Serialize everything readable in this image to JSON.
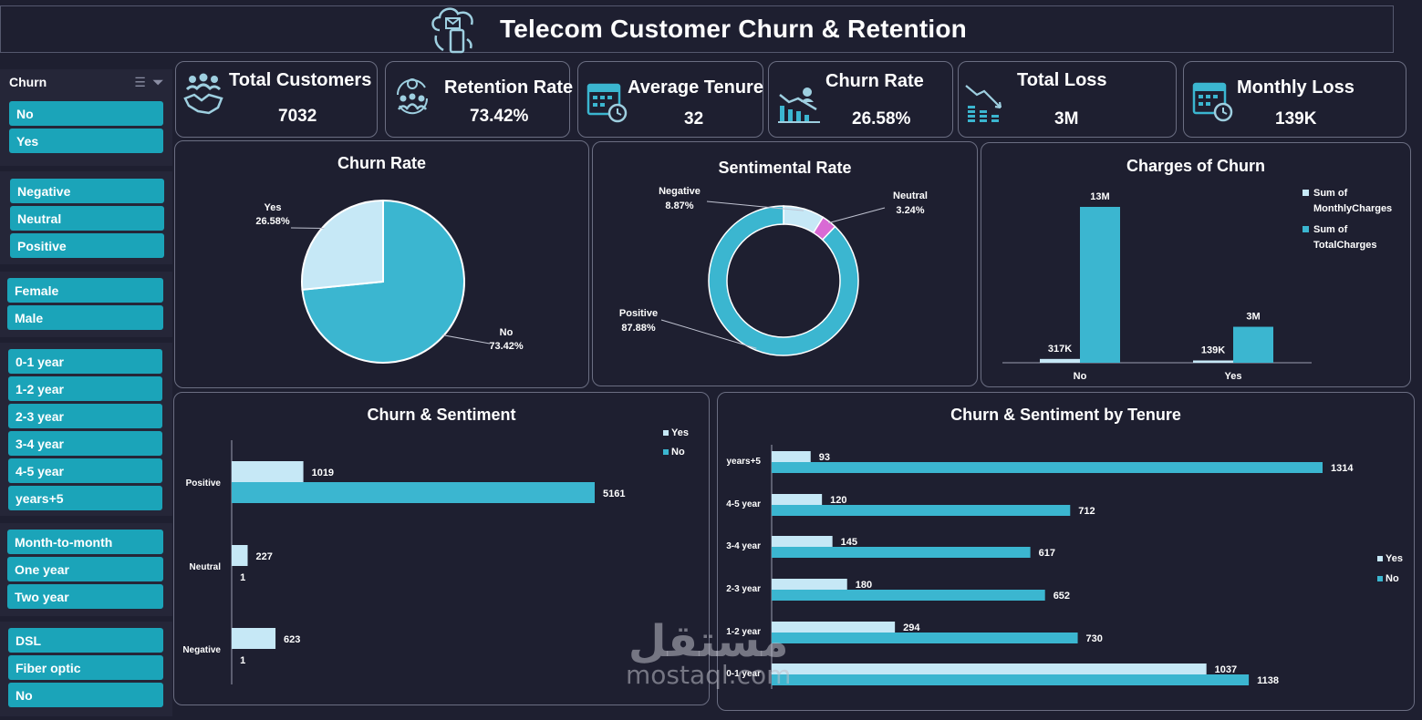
{
  "title": "Telecom Customer Churn & Retention",
  "colors": {
    "background": "#1e1f30",
    "accent": "#3bb6d0",
    "light": "#c6e8f6",
    "pink": "#d96ad4",
    "slicer": "#1ba4b9"
  },
  "slicers": [
    {
      "header": "Churn",
      "items": [
        "No",
        "Yes"
      ]
    },
    {
      "header": "",
      "items": [
        "Negative",
        "Neutral",
        "Positive"
      ]
    },
    {
      "header": "",
      "items": [
        "Female",
        "Male"
      ]
    },
    {
      "header": "",
      "items": [
        "0-1 year",
        "1-2 year",
        "2-3 year",
        "3-4 year",
        "4-5 year",
        "years+5"
      ]
    },
    {
      "header": "",
      "items": [
        "Month-to-month",
        "One year",
        "Two year"
      ]
    },
    {
      "header": "",
      "items": [
        "DSL",
        "Fiber optic",
        "No"
      ]
    }
  ],
  "kpis": [
    {
      "label": "Total Customers",
      "value": "7032",
      "icon": "handshake-icon"
    },
    {
      "label": "Retention Rate",
      "value": "73.42%",
      "icon": "retention-cycle-icon"
    },
    {
      "label": "Average Tenure",
      "value": "32",
      "icon": "calendar-clock-icon"
    },
    {
      "label": "Churn Rate",
      "value": "26.58%",
      "icon": "declining-chart-icon"
    },
    {
      "label": "Total Loss",
      "value": "3M",
      "icon": "falling-bars-icon"
    },
    {
      "label": "Monthly Loss",
      "value": "139K",
      "icon": "calendar-clock-icon"
    }
  ],
  "chart_data": [
    {
      "type": "pie",
      "title": "Churn Rate",
      "slices": [
        {
          "name": "Yes",
          "value": 26.58,
          "label": "26.58%",
          "color": "#c6e8f6"
        },
        {
          "name": "No",
          "value": 73.42,
          "label": "73.42%",
          "color": "#3bb6d0"
        }
      ]
    },
    {
      "type": "pie",
      "subtype": "donut",
      "title": "Sentimental Rate",
      "slices": [
        {
          "name": "Negative",
          "value": 8.87,
          "label": "8.87%",
          "color": "#c6e8f6"
        },
        {
          "name": "Neutral",
          "value": 3.24,
          "label": "3.24%",
          "color": "#d96ad4"
        },
        {
          "name": "Positive",
          "value": 87.88,
          "label": "87.88%",
          "color": "#3bb6d0"
        }
      ]
    },
    {
      "type": "bar",
      "title": "Charges of Churn",
      "categories": [
        "No",
        "Yes"
      ],
      "series": [
        {
          "name": "Sum of MonthlyCharges",
          "legend_lines": [
            "Sum of",
            "MonthlyCharges"
          ],
          "values": [
            317000,
            139000
          ],
          "labels": [
            "317K",
            "139K"
          ],
          "color": "#c6e8f6"
        },
        {
          "name": "Sum of TotalCharges",
          "legend_lines": [
            "Sum of",
            "TotalCharges"
          ],
          "values": [
            13000000,
            3000000
          ],
          "labels": [
            "13M",
            "3M"
          ],
          "color": "#3bb6d0"
        }
      ],
      "legend": "right"
    },
    {
      "type": "bar",
      "orientation": "horizontal",
      "title": "Churn & Sentiment",
      "categories": [
        "Positive",
        "Neutral",
        "Negative"
      ],
      "series": [
        {
          "name": "Yes",
          "values": [
            1019,
            227,
            623
          ],
          "color": "#c6e8f6"
        },
        {
          "name": "No",
          "values": [
            5161,
            1,
            1
          ],
          "color": "#3bb6d0"
        }
      ],
      "legend": "top-right"
    },
    {
      "type": "bar",
      "orientation": "horizontal",
      "title": "Churn & Sentiment by Tenure",
      "categories": [
        "years+5",
        "4-5 year",
        "3-4 year",
        "2-3 year",
        "1-2 year",
        "0-1 year"
      ],
      "series": [
        {
          "name": "Yes",
          "values": [
            93,
            120,
            145,
            180,
            294,
            1037
          ],
          "color": "#c6e8f6"
        },
        {
          "name": "No",
          "values": [
            1314,
            712,
            617,
            652,
            730,
            1138
          ],
          "color": "#3bb6d0"
        }
      ],
      "legend": "right"
    }
  ],
  "watermark": {
    "arabic": "مستقل",
    "latin": "mostaql.com"
  }
}
